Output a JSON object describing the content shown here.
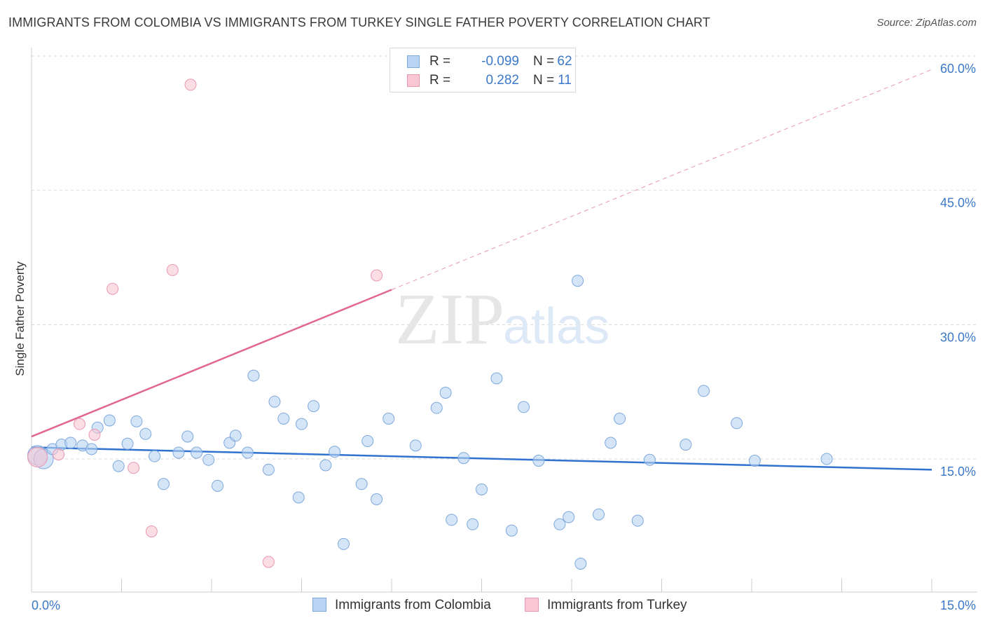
{
  "header": {
    "title": "IMMIGRANTS FROM COLOMBIA VS IMMIGRANTS FROM TURKEY SINGLE FATHER POVERTY CORRELATION CHART",
    "source": "Source: ZipAtlas.com"
  },
  "watermark": {
    "zip": "ZIP",
    "atlas": "atlas"
  },
  "legend_top": {
    "rows": [
      {
        "r_label": "R =",
        "r_value": "-0.099",
        "n_label": "N =",
        "n_value": "62"
      },
      {
        "r_label": "R =",
        "r_value": "0.282",
        "n_label": "N =",
        "n_value": "11"
      }
    ]
  },
  "legend_bottom": {
    "colombia": "Immigrants from Colombia",
    "turkey": "Immigrants from Turkey"
  },
  "colors": {
    "colombia_fill": "#b8d3f4",
    "colombia_stroke": "#7ea8dc",
    "colombia_line": "#2f72d0",
    "turkey_fill": "#f9c6d4",
    "turkey_stroke": "#ea98b0",
    "turkey_line": "#e0678f",
    "tick_label": "#3b78c8",
    "grid": "#d9d9d9"
  },
  "chart_data": {
    "type": "scatter",
    "title": "IMMIGRANTS FROM COLOMBIA VS IMMIGRANTS FROM TURKEY SINGLE FATHER POVERTY CORRELATION CHART",
    "xlabel": "",
    "ylabel": "Single Father Poverty",
    "xlim": [
      0,
      15
    ],
    "ylim": [
      0,
      60
    ],
    "x_tick_labels": [
      "0.0%",
      "15.0%"
    ],
    "y_ticks": [
      {
        "value": 15,
        "label": "15.0%"
      },
      {
        "value": 30,
        "label": "30.0%"
      },
      {
        "value": 45,
        "label": "45.0%"
      },
      {
        "value": 60,
        "label": "60.0%"
      }
    ],
    "series": [
      {
        "name": "Immigrants from Colombia",
        "r": -0.099,
        "n": 62,
        "trend": {
          "x": [
            0,
            15
          ],
          "y": [
            16.3,
            13.8
          ]
        },
        "points": [
          {
            "x": 0.1,
            "y": 15.4,
            "big": true
          },
          {
            "x": 0.2,
            "y": 15.0,
            "big": true
          },
          {
            "x": 0.35,
            "y": 16.1
          },
          {
            "x": 0.5,
            "y": 16.6
          },
          {
            "x": 0.65,
            "y": 16.8
          },
          {
            "x": 0.85,
            "y": 16.5
          },
          {
            "x": 1.0,
            "y": 16.1
          },
          {
            "x": 1.1,
            "y": 18.5
          },
          {
            "x": 1.3,
            "y": 19.3
          },
          {
            "x": 1.45,
            "y": 14.2
          },
          {
            "x": 1.6,
            "y": 16.7
          },
          {
            "x": 1.75,
            "y": 19.2
          },
          {
            "x": 1.9,
            "y": 17.8
          },
          {
            "x": 2.05,
            "y": 15.3
          },
          {
            "x": 2.2,
            "y": 12.2
          },
          {
            "x": 2.45,
            "y": 15.7
          },
          {
            "x": 2.6,
            "y": 17.5
          },
          {
            "x": 2.75,
            "y": 15.7
          },
          {
            "x": 2.95,
            "y": 14.9
          },
          {
            "x": 3.1,
            "y": 12.0
          },
          {
            "x": 3.3,
            "y": 16.8
          },
          {
            "x": 3.4,
            "y": 17.6
          },
          {
            "x": 3.6,
            "y": 15.7
          },
          {
            "x": 3.7,
            "y": 24.3
          },
          {
            "x": 3.95,
            "y": 13.8
          },
          {
            "x": 4.05,
            "y": 21.4
          },
          {
            "x": 4.2,
            "y": 19.5
          },
          {
            "x": 4.45,
            "y": 10.7
          },
          {
            "x": 4.5,
            "y": 18.9
          },
          {
            "x": 4.7,
            "y": 20.9
          },
          {
            "x": 4.9,
            "y": 14.3
          },
          {
            "x": 5.05,
            "y": 15.8
          },
          {
            "x": 5.2,
            "y": 5.5
          },
          {
            "x": 5.5,
            "y": 12.2
          },
          {
            "x": 5.6,
            "y": 17.0
          },
          {
            "x": 5.75,
            "y": 10.5
          },
          {
            "x": 5.95,
            "y": 19.5
          },
          {
            "x": 6.4,
            "y": 16.5
          },
          {
            "x": 6.75,
            "y": 20.7
          },
          {
            "x": 6.9,
            "y": 22.4
          },
          {
            "x": 7.0,
            "y": 8.2
          },
          {
            "x": 7.2,
            "y": 15.1
          },
          {
            "x": 7.35,
            "y": 7.7
          },
          {
            "x": 7.5,
            "y": 11.6
          },
          {
            "x": 7.75,
            "y": 24.0
          },
          {
            "x": 8.0,
            "y": 7.0
          },
          {
            "x": 8.2,
            "y": 20.8
          },
          {
            "x": 8.45,
            "y": 14.8
          },
          {
            "x": 8.8,
            "y": 7.7
          },
          {
            "x": 8.95,
            "y": 8.5
          },
          {
            "x": 9.1,
            "y": 34.9
          },
          {
            "x": 9.15,
            "y": 3.3
          },
          {
            "x": 9.45,
            "y": 8.8
          },
          {
            "x": 9.65,
            "y": 16.8
          },
          {
            "x": 9.8,
            "y": 19.5
          },
          {
            "x": 10.1,
            "y": 8.1
          },
          {
            "x": 10.3,
            "y": 14.9
          },
          {
            "x": 10.9,
            "y": 16.6
          },
          {
            "x": 11.2,
            "y": 22.6
          },
          {
            "x": 11.75,
            "y": 19.0
          },
          {
            "x": 12.05,
            "y": 14.8
          },
          {
            "x": 13.25,
            "y": 15.0
          }
        ]
      },
      {
        "name": "Immigrants from Turkey",
        "r": 0.282,
        "n": 11,
        "trend": {
          "x": [
            0,
            6.0
          ],
          "y": [
            17.5,
            33.9
          ]
        },
        "trend_extension": {
          "x": [
            6.0,
            15.0
          ],
          "y": [
            33.9,
            58.5
          ]
        },
        "points": [
          {
            "x": 0.1,
            "y": 15.2,
            "big": true
          },
          {
            "x": 0.45,
            "y": 15.5
          },
          {
            "x": 0.8,
            "y": 18.9
          },
          {
            "x": 1.05,
            "y": 17.7
          },
          {
            "x": 1.35,
            "y": 34.0
          },
          {
            "x": 1.7,
            "y": 14.0
          },
          {
            "x": 2.0,
            "y": 6.9
          },
          {
            "x": 2.35,
            "y": 36.1
          },
          {
            "x": 2.65,
            "y": 56.8
          },
          {
            "x": 3.95,
            "y": 3.5
          },
          {
            "x": 5.75,
            "y": 35.5
          }
        ]
      }
    ]
  }
}
